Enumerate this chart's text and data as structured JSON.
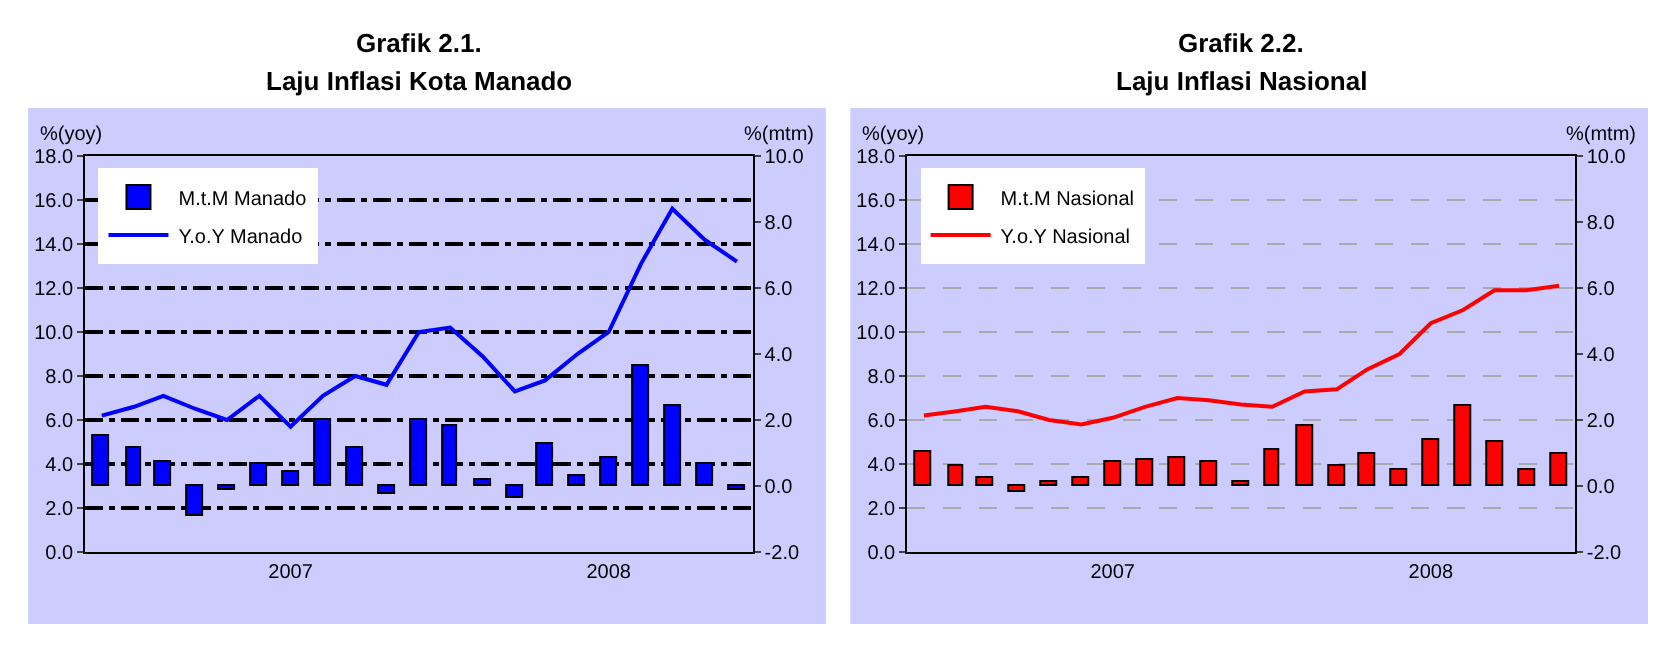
{
  "chart_data": [
    {
      "type": "bar",
      "title": "Grafik 2.1.",
      "subtitle": "Laju Inflasi Kota Manado",
      "ylabel": "%(yoy)",
      "y2label": "%(mtm)",
      "x": [
        "2007-01",
        "2007-02",
        "2007-03",
        "2007-04",
        "2007-05",
        "2007-06",
        "2007-07",
        "2007-08",
        "2007-09",
        "2007-10",
        "2007-11",
        "2007-12",
        "2008-01",
        "2008-02",
        "2008-03",
        "2008-04",
        "2008-05",
        "2008-06",
        "2008-07",
        "2008-08",
        "2008-09"
      ],
      "xlim": [
        "2006-12-16",
        "2008-09-16"
      ],
      "xticks": [
        {
          "value": "2007-07-01",
          "label": "2007"
        },
        {
          "value": "2008-05-01",
          "label": "2008"
        }
      ],
      "ylim": [
        0,
        18
      ],
      "yticks": [
        {
          "value": 0,
          "label": "0.0"
        },
        {
          "value": 2,
          "label": "2.0"
        },
        {
          "value": 4,
          "label": "4.0"
        },
        {
          "value": 6,
          "label": "6.0"
        },
        {
          "value": 8,
          "label": "8.0"
        },
        {
          "value": 10,
          "label": "10.0"
        },
        {
          "value": 12,
          "label": "12.0"
        },
        {
          "value": 14,
          "label": "14.0"
        },
        {
          "value": 16,
          "label": "16.0"
        },
        {
          "value": 18,
          "label": "18.0"
        }
      ],
      "y2lim": [
        -2,
        10
      ],
      "y2ticks": [
        {
          "value": -2,
          "label": "-2.0"
        },
        {
          "value": 0,
          "label": "0.0"
        },
        {
          "value": 2,
          "label": "2.0"
        },
        {
          "value": 4,
          "label": "4.0"
        },
        {
          "value": 6,
          "label": "6.0"
        },
        {
          "value": 8,
          "label": "8.0"
        },
        {
          "value": 10,
          "label": "10.0"
        }
      ],
      "grid": "y",
      "legend": "top left",
      "series": [
        {
          "name": "M.t.M Manado",
          "axis": "y2",
          "color": "#0000ff",
          "values": [
            1.5,
            1.15,
            0.75,
            -0.9,
            -0.1,
            0.65,
            0.45,
            2.0,
            1.15,
            -0.25,
            2.0,
            1.8,
            0.2,
            -0.35,
            1.3,
            0.3,
            0.85,
            3.65,
            2.4,
            0.65,
            -0.1
          ]
        },
        {
          "name": "Y.o.Y Manado",
          "type": "line",
          "axis": "y",
          "color": "#0000ff",
          "values": [
            6.2,
            6.6,
            7.1,
            6.5,
            6.0,
            7.1,
            5.7,
            7.1,
            8.0,
            7.6,
            10.0,
            10.2,
            8.9,
            7.3,
            7.8,
            9.0,
            10.0,
            13.1,
            15.6,
            14.2,
            13.2
          ]
        }
      ]
    },
    {
      "type": "bar",
      "title": "Grafik 2.2.",
      "subtitle": "Laju Inflasi Nasional",
      "ylabel": "%(yoy)",
      "y2label": "%(mtm)",
      "x": [
        "2007-01",
        "2007-02",
        "2007-03",
        "2007-04",
        "2007-05",
        "2007-06",
        "2007-07",
        "2007-08",
        "2007-09",
        "2007-10",
        "2007-11",
        "2007-12",
        "2008-01",
        "2008-02",
        "2008-03",
        "2008-04",
        "2008-05",
        "2008-06",
        "2008-07",
        "2008-08",
        "2008-09"
      ],
      "xlim": [
        "2006-12-16",
        "2008-09-16"
      ],
      "xticks": [
        {
          "value": "2007-07-01",
          "label": "2007"
        },
        {
          "value": "2008-05-01",
          "label": "2008"
        }
      ],
      "ylim": [
        0,
        18
      ],
      "yticks": [
        {
          "value": 0,
          "label": "0.0"
        },
        {
          "value": 2,
          "label": "2.0"
        },
        {
          "value": 4,
          "label": "4.0"
        },
        {
          "value": 6,
          "label": "6.0"
        },
        {
          "value": 8,
          "label": "8.0"
        },
        {
          "value": 10,
          "label": "10.0"
        },
        {
          "value": 12,
          "label": "12.0"
        },
        {
          "value": 14,
          "label": "14.0"
        },
        {
          "value": 16,
          "label": "16.0"
        },
        {
          "value": 18,
          "label": "18.0"
        }
      ],
      "y2lim": [
        -2,
        10
      ],
      "y2ticks": [
        {
          "value": -2,
          "label": "-2.0"
        },
        {
          "value": 0,
          "label": "0.0"
        },
        {
          "value": 2,
          "label": "2.0"
        },
        {
          "value": 4,
          "label": "4.0"
        },
        {
          "value": 6,
          "label": "6.0"
        },
        {
          "value": 8,
          "label": "8.0"
        },
        {
          "value": 10,
          "label": "10.0"
        }
      ],
      "grid": "y",
      "legend": "top left",
      "series": [
        {
          "name": "M.t.M Nasional",
          "axis": "y2",
          "color": "#ff0000",
          "values": [
            1.05,
            0.6,
            0.25,
            -0.2,
            0.1,
            0.25,
            0.7,
            0.8,
            0.85,
            0.75,
            0.15,
            1.1,
            1.8,
            0.6,
            1.0,
            0.5,
            1.4,
            2.45,
            1.35,
            0.5,
            0.95
          ]
        },
        {
          "name": "Y.o.Y Nasional",
          "type": "line",
          "axis": "y",
          "color": "#ff0000",
          "values": [
            6.2,
            6.4,
            6.6,
            6.4,
            6.0,
            5.8,
            6.1,
            6.6,
            7.0,
            6.9,
            6.7,
            6.6,
            7.3,
            7.4,
            8.3,
            9.0,
            10.4,
            11.0,
            11.9,
            11.9,
            12.1
          ]
        }
      ]
    }
  ]
}
